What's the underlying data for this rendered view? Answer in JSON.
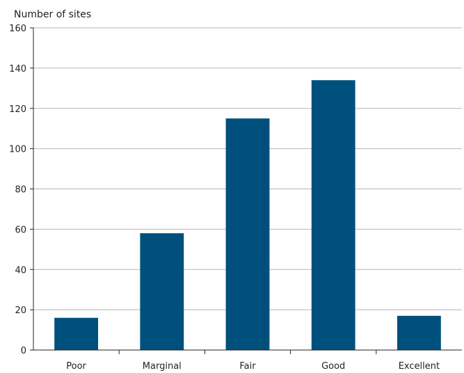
{
  "chart_data": {
    "type": "bar",
    "title": "",
    "ylabel": "Number of sites",
    "xlabel": "",
    "categories": [
      "Poor",
      "Marginal",
      "Fair",
      "Good",
      "Excellent"
    ],
    "values": [
      16,
      58,
      115,
      134,
      17
    ],
    "ylim": [
      0,
      160
    ],
    "yticks": [
      0,
      20,
      40,
      60,
      80,
      100,
      120,
      140,
      160
    ],
    "grid": true,
    "bar_color": "#00507D",
    "grid_color": "#b5b5b5",
    "axis_color": "#222222"
  }
}
